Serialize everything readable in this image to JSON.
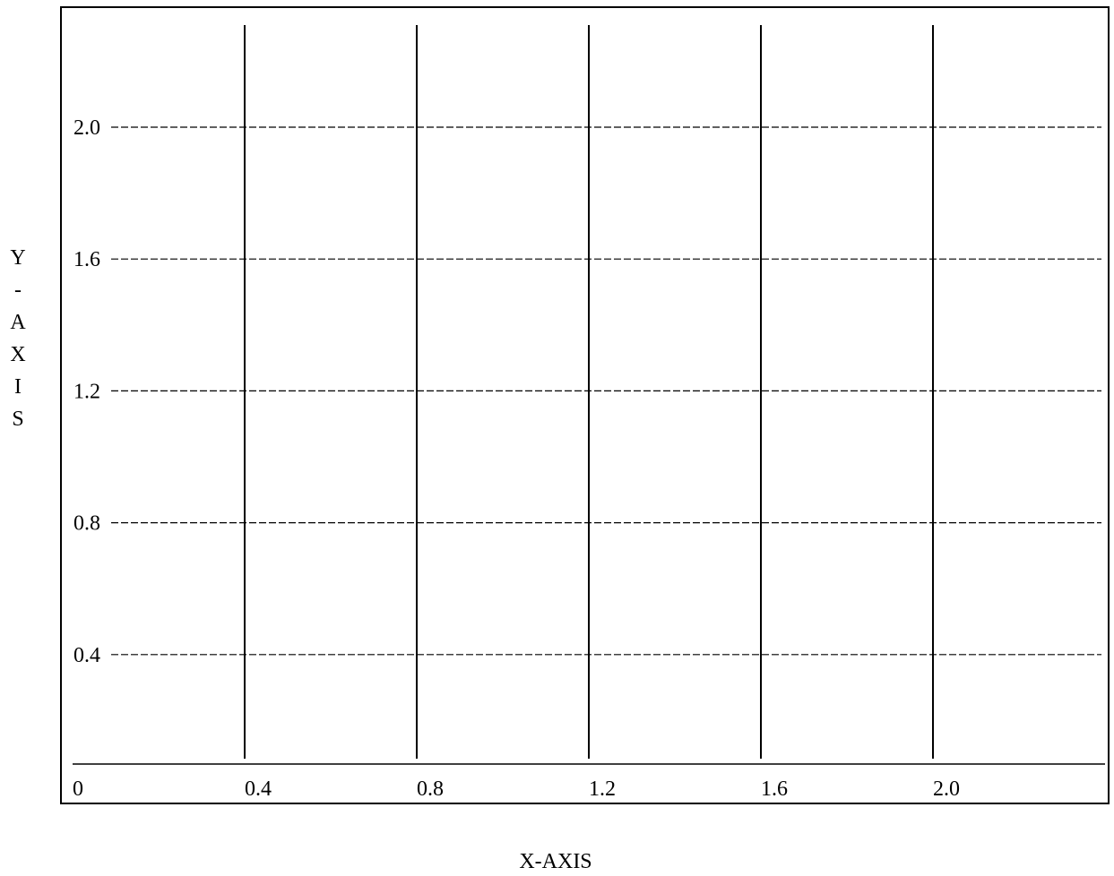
{
  "chart_data": {
    "type": "line",
    "title": "",
    "xlabel": "X-AXIS",
    "ylabel": "Y-AXIS",
    "x_ticks": [
      "0",
      "0.4",
      "0.8",
      "1.2",
      "1.6",
      "2.0"
    ],
    "y_ticks": [
      "0.4",
      "0.8",
      "1.2",
      "1.6",
      "2.0"
    ],
    "xlim": [
      0,
      2.4
    ],
    "ylim": [
      0,
      2.3
    ],
    "vertical_lines_at_x": [
      0.4,
      0.8,
      1.2,
      1.6,
      2.0
    ],
    "horizontal_dashed_lines_at_y": [
      0.4,
      0.8,
      1.2,
      1.6,
      2.0
    ],
    "grid": true,
    "series": []
  },
  "colors": {
    "line": "#000000",
    "background": "#ffffff"
  }
}
